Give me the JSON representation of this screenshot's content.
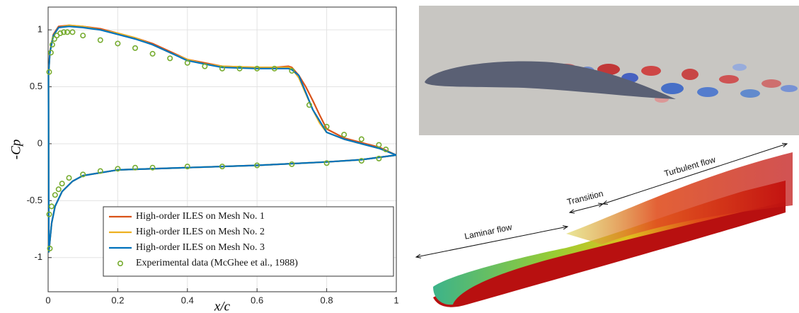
{
  "chart_data": {
    "type": "line",
    "xlabel": "x/c",
    "ylabel": "-Cp",
    "xlim": [
      0,
      1
    ],
    "ylim": [
      -1.3,
      1.2
    ],
    "xticks": [
      0,
      0.2,
      0.4,
      0.6,
      0.8,
      1
    ],
    "yticks": [
      -1,
      -0.5,
      0,
      0.5,
      1
    ],
    "grid": true,
    "legend": "lower right",
    "series": [
      {
        "name": "High-order ILES on Mesh No. 1",
        "color": "#d95319",
        "style": "line",
        "x": [
          1,
          0.95,
          0.9,
          0.85,
          0.8,
          0.78,
          0.76,
          0.74,
          0.72,
          0.7,
          0.69,
          0.65,
          0.6,
          0.5,
          0.45,
          0.4,
          0.35,
          0.3,
          0.25,
          0.2,
          0.15,
          0.1,
          0.06,
          0.03,
          0.015,
          0.005,
          0.001,
          0.002,
          0.01,
          0.02,
          0.04,
          0.07,
          0.1,
          0.2,
          0.4,
          0.6,
          0.8,
          0.9,
          1
        ],
        "values": [
          -0.1,
          -0.03,
          0.01,
          0.05,
          0.13,
          0.25,
          0.38,
          0.5,
          0.6,
          0.67,
          0.68,
          0.67,
          0.67,
          0.68,
          0.71,
          0.74,
          0.81,
          0.88,
          0.93,
          0.97,
          1.01,
          1.03,
          1.04,
          1.03,
          0.96,
          0.81,
          0.6,
          -0.95,
          -0.7,
          -0.55,
          -0.42,
          -0.33,
          -0.28,
          -0.23,
          -0.21,
          -0.19,
          -0.16,
          -0.14,
          -0.1
        ]
      },
      {
        "name": "High-order ILES on Mesh No. 2",
        "color": "#edb120",
        "style": "line",
        "x": [
          1,
          0.95,
          0.9,
          0.85,
          0.8,
          0.78,
          0.76,
          0.74,
          0.72,
          0.7,
          0.69,
          0.65,
          0.6,
          0.5,
          0.45,
          0.4,
          0.35,
          0.3,
          0.25,
          0.2,
          0.15,
          0.1,
          0.06,
          0.03,
          0.015,
          0.005,
          0.001,
          0.002,
          0.01,
          0.02,
          0.04,
          0.07,
          0.1,
          0.2,
          0.4,
          0.6,
          0.8,
          0.9,
          1
        ],
        "values": [
          -0.1,
          -0.04,
          0.0,
          0.04,
          0.1,
          0.18,
          0.3,
          0.44,
          0.58,
          0.66,
          0.67,
          0.67,
          0.67,
          0.68,
          0.7,
          0.74,
          0.8,
          0.87,
          0.93,
          0.97,
          1.0,
          1.03,
          1.04,
          1.02,
          0.95,
          0.8,
          0.6,
          -0.95,
          -0.7,
          -0.55,
          -0.42,
          -0.33,
          -0.28,
          -0.23,
          -0.21,
          -0.19,
          -0.16,
          -0.14,
          -0.1
        ]
      },
      {
        "name": "High-order ILES on Mesh No. 3",
        "color": "#0072bd",
        "style": "line",
        "x": [
          1,
          0.95,
          0.9,
          0.85,
          0.8,
          0.78,
          0.76,
          0.74,
          0.72,
          0.7,
          0.69,
          0.65,
          0.6,
          0.5,
          0.45,
          0.4,
          0.35,
          0.3,
          0.25,
          0.2,
          0.15,
          0.1,
          0.06,
          0.03,
          0.015,
          0.005,
          0.001,
          0.002,
          0.01,
          0.02,
          0.04,
          0.07,
          0.1,
          0.2,
          0.4,
          0.6,
          0.8,
          0.9,
          1
        ],
        "values": [
          -0.1,
          -0.04,
          0.0,
          0.04,
          0.1,
          0.2,
          0.3,
          0.45,
          0.6,
          0.65,
          0.66,
          0.66,
          0.66,
          0.67,
          0.7,
          0.73,
          0.8,
          0.87,
          0.92,
          0.96,
          1.0,
          1.02,
          1.03,
          1.02,
          0.95,
          0.8,
          0.6,
          -0.95,
          -0.7,
          -0.55,
          -0.42,
          -0.33,
          -0.28,
          -0.23,
          -0.21,
          -0.19,
          -0.16,
          -0.14,
          -0.1
        ]
      },
      {
        "name": "Experimental data (McGhee et al., 1988)",
        "color": "#77ac30",
        "style": "markers",
        "x": [
          0.003,
          0.008,
          0.012,
          0.018,
          0.025,
          0.035,
          0.045,
          0.055,
          0.07,
          0.1,
          0.15,
          0.2,
          0.25,
          0.3,
          0.35,
          0.4,
          0.45,
          0.5,
          0.55,
          0.6,
          0.65,
          0.7,
          0.75,
          0.8,
          0.85,
          0.9,
          0.95,
          0.97,
          0.003,
          0.005,
          0.01,
          0.02,
          0.03,
          0.04,
          0.06,
          0.1,
          0.15,
          0.2,
          0.25,
          0.3,
          0.4,
          0.5,
          0.6,
          0.7,
          0.8,
          0.9,
          0.95
        ],
        "values": [
          0.63,
          0.8,
          0.87,
          0.92,
          0.95,
          0.97,
          0.98,
          0.98,
          0.98,
          0.95,
          0.91,
          0.88,
          0.84,
          0.79,
          0.75,
          0.71,
          0.68,
          0.66,
          0.66,
          0.66,
          0.66,
          0.64,
          0.34,
          0.15,
          0.08,
          0.04,
          -0.01,
          -0.05,
          -0.62,
          -0.92,
          -0.55,
          -0.45,
          -0.4,
          -0.35,
          -0.3,
          -0.27,
          -0.24,
          -0.22,
          -0.21,
          -0.21,
          -0.2,
          -0.2,
          -0.19,
          -0.18,
          -0.17,
          -0.15,
          -0.13
        ]
      }
    ],
    "annotations": [
      "Laminar flow",
      "Transition",
      "Turbulent flow"
    ]
  }
}
